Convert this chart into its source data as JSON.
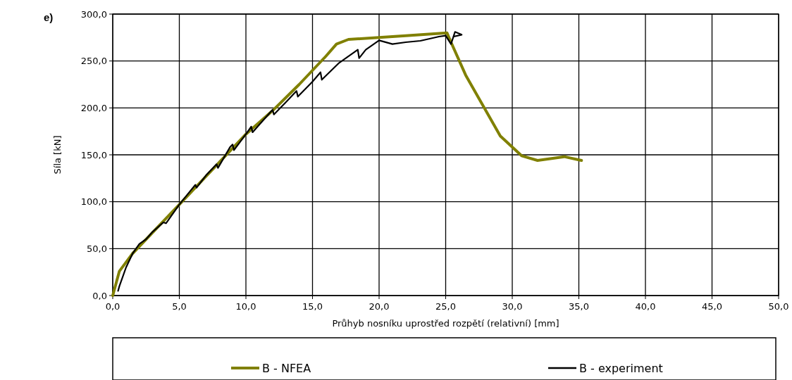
{
  "chart_data": {
    "type": "line",
    "xlabel": "Průhyb nosníku uprostřed rozpětí (relativní) [mm]",
    "ylabel": "Síla [kN]",
    "annotations": [
      "e)"
    ],
    "xlim": [
      0,
      50
    ],
    "ylim": [
      0,
      300
    ],
    "xticks": [
      {
        "value": 0,
        "label": "0,0"
      },
      {
        "value": 5,
        "label": "5,0"
      },
      {
        "value": 10,
        "label": "10,0"
      },
      {
        "value": 15,
        "label": "15,0"
      },
      {
        "value": 20,
        "label": "20,0"
      },
      {
        "value": 25,
        "label": "25,0"
      },
      {
        "value": 30,
        "label": "30,0"
      },
      {
        "value": 35,
        "label": "35,0"
      },
      {
        "value": 40,
        "label": "40,0"
      },
      {
        "value": 45,
        "label": "45,0"
      },
      {
        "value": 50,
        "label": "50,0"
      }
    ],
    "yticks": [
      {
        "value": 0,
        "label": "0,0"
      },
      {
        "value": 50,
        "label": "50,0"
      },
      {
        "value": 100,
        "label": "100,0"
      },
      {
        "value": 150,
        "label": "150,0"
      },
      {
        "value": 200,
        "label": "200,0"
      },
      {
        "value": 250,
        "label": "250,0"
      },
      {
        "value": 300,
        "label": "300,0"
      }
    ],
    "grid": true,
    "legend": "bottom",
    "line_style": "solid",
    "series": [
      {
        "name": "B - NFEA",
        "color": "#808000",
        "x": [
          0,
          0.5,
          1.5,
          5,
          10,
          12,
          14,
          16,
          16.8,
          17.7,
          20,
          22,
          25.1,
          25.4,
          26.5,
          29.1,
          30.7,
          31.9,
          33.9,
          35.2
        ],
        "values": [
          0,
          26,
          45,
          97,
          172,
          197,
          225,
          255,
          268,
          273,
          275,
          277,
          280,
          270,
          235,
          170,
          149,
          144,
          148,
          144
        ]
      },
      {
        "name": "B - experiment",
        "color": "#000000",
        "x": [
          0.4,
          0.5,
          1,
          1.5,
          2,
          2.5,
          3,
          3.8,
          4,
          5,
          6.2,
          6.3,
          7,
          7.8,
          7.9,
          8.8,
          9,
          9.1,
          10,
          10.4,
          10.5,
          11,
          12,
          12.1,
          13,
          13.8,
          13.9,
          15,
          15.6,
          15.7,
          17,
          18.4,
          18.5,
          19,
          20,
          21,
          22,
          23.1,
          24.5,
          25,
          25.4,
          25.7,
          26.2,
          25.6
        ],
        "values": [
          5,
          10,
          30,
          45,
          55,
          60,
          68,
          78,
          77,
          97,
          118,
          115,
          128,
          140,
          136,
          158,
          161,
          155,
          172,
          180,
          174,
          182,
          198,
          193,
          206,
          218,
          212,
          228,
          238,
          230,
          248,
          262,
          253,
          262,
          272,
          268,
          270,
          271.5,
          276,
          277,
          268,
          281,
          278,
          276
        ]
      }
    ]
  }
}
